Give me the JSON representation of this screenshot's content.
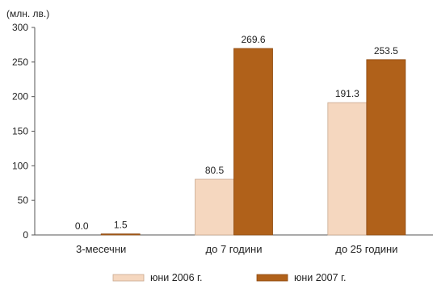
{
  "chart_data": {
    "type": "bar",
    "unit_label": "(млн. лв.)",
    "categories": [
      "3-месечни",
      "до 7 години",
      "до 25 години"
    ],
    "series": [
      {
        "name": "юни 2006 г.",
        "values": [
          0.0,
          80.5,
          191.3
        ],
        "labels": [
          "0.0",
          "80.5",
          "191.3"
        ],
        "color": "#f5d7bf",
        "stroke": "#c9a88e"
      },
      {
        "name": "юни 2007 г.",
        "values": [
          1.5,
          269.6,
          253.5
        ],
        "labels": [
          "1.5",
          "269.6",
          "253.5"
        ],
        "color": "#b0611a",
        "stroke": "#8e4a10"
      }
    ],
    "ylim": [
      0,
      300
    ],
    "yticks": [
      0,
      50,
      100,
      150,
      200,
      250,
      300
    ],
    "grid": false,
    "legend_position": "bottom-center",
    "axis_color": "#555555"
  }
}
